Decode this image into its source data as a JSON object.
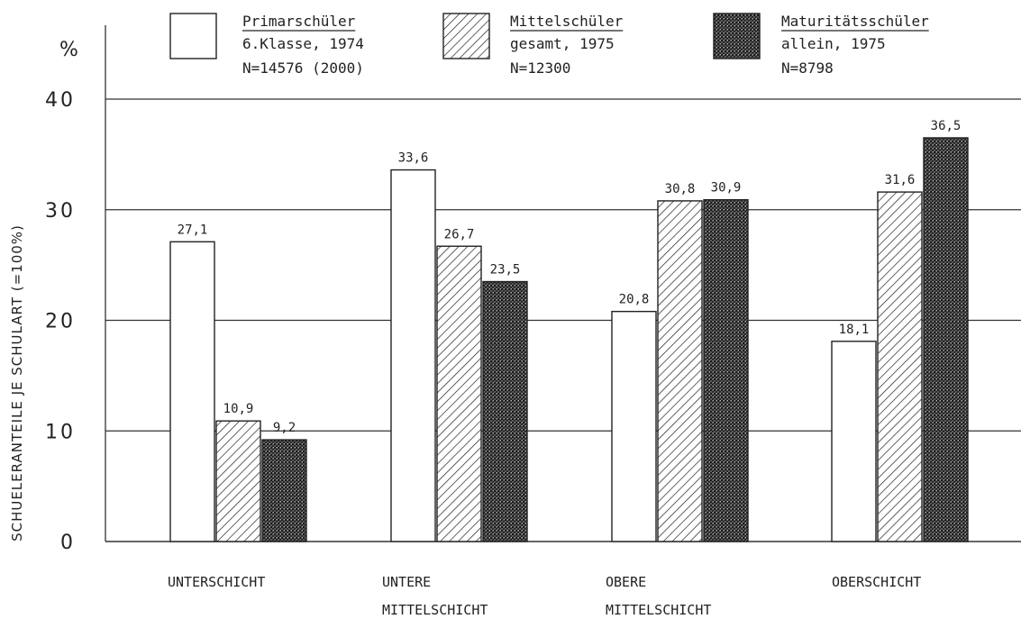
{
  "chart_data": {
    "type": "bar",
    "ylabel": "SCHUELERANTEILE JE SCHULART (=100%)",
    "yunit": "%",
    "ylim": [
      0,
      40
    ],
    "yticks": [
      0,
      10,
      20,
      30,
      40
    ],
    "grid": true,
    "legend_position": "top",
    "categories": [
      [
        "UNTERSCHICHT"
      ],
      [
        "UNTERE",
        "MITTELSCHICHT"
      ],
      [
        "OBERE",
        "MITTELSCHICHT"
      ],
      [
        "OBERSCHICHT"
      ]
    ],
    "series": [
      {
        "name": "Primarschüler",
        "detail": "6.Klasse, 1974",
        "n": "N=14576 (2000)",
        "pattern": "white",
        "values": [
          27.1,
          33.6,
          20.8,
          18.1
        ],
        "labels": [
          "27,1",
          "33,6",
          "20,8",
          "18,1"
        ]
      },
      {
        "name": "Mittelschüler",
        "detail": "gesamt, 1975",
        "n": "N=12300",
        "pattern": "hatch",
        "values": [
          10.9,
          26.7,
          30.8,
          31.6
        ],
        "labels": [
          "10,9",
          "26,7",
          "30,8",
          "31,6"
        ]
      },
      {
        "name": "Maturitätsschüler",
        "detail": "allein, 1975",
        "n": "N=8798",
        "pattern": "dense",
        "values": [
          9.2,
          23.5,
          30.9,
          36.5
        ],
        "labels": [
          "9,2",
          "23,5",
          "30,9",
          "36,5"
        ]
      }
    ]
  }
}
